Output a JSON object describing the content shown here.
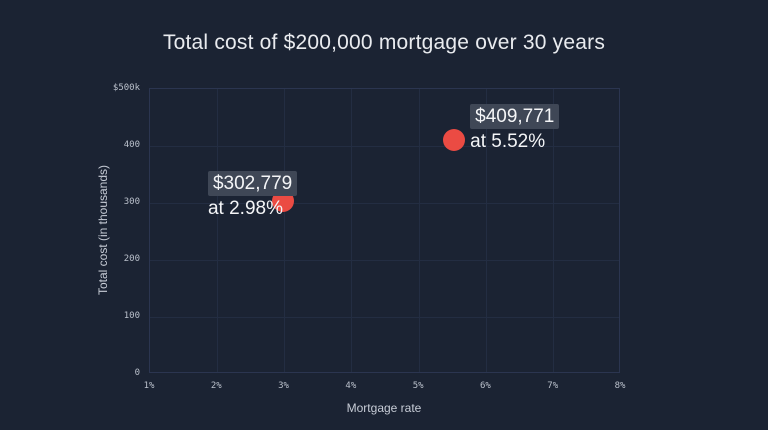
{
  "chart_data": {
    "type": "scatter",
    "title": "Total cost of $200,000 mortgage over 30 years",
    "xlabel": "Mortgage rate",
    "ylabel": "Total cost (in thousands)",
    "xlim": [
      1,
      8
    ],
    "ylim": [
      0,
      500
    ],
    "grid": true,
    "legend": "none",
    "x_ticks": [
      {
        "label": "1%",
        "value": 1
      },
      {
        "label": "2%",
        "value": 2
      },
      {
        "label": "3%",
        "value": 3
      },
      {
        "label": "4%",
        "value": 4
      },
      {
        "label": "5%",
        "value": 5
      },
      {
        "label": "6%",
        "value": 6
      },
      {
        "label": "7%",
        "value": 7
      },
      {
        "label": "8%",
        "value": 8
      }
    ],
    "y_ticks": [
      {
        "label": "$500k",
        "value": 500
      },
      {
        "label": "400",
        "value": 400
      },
      {
        "label": "300",
        "value": 300
      },
      {
        "label": "200",
        "value": 200
      },
      {
        "label": "100",
        "value": 100
      },
      {
        "label": "0",
        "value": 0
      }
    ],
    "points": [
      {
        "x": 2.98,
        "y": 302.779,
        "annotation": {
          "line1": "$302,779",
          "line2": "at 2.98%",
          "side": "left"
        }
      },
      {
        "x": 5.52,
        "y": 409.771,
        "annotation": {
          "line1": "$409,771",
          "line2": "at 5.52%",
          "side": "right"
        }
      }
    ],
    "colors": {
      "background": "#1b2333",
      "grid": "#232d42",
      "frame": "#2b3550",
      "point": "#eb4b43",
      "annotation_box": "#3f4756",
      "annotation_text": "#f4f5f7",
      "title_text": "#e9ebef",
      "axis_title_text": "#c7ccd6",
      "tick_text": "#bac0cb"
    }
  }
}
